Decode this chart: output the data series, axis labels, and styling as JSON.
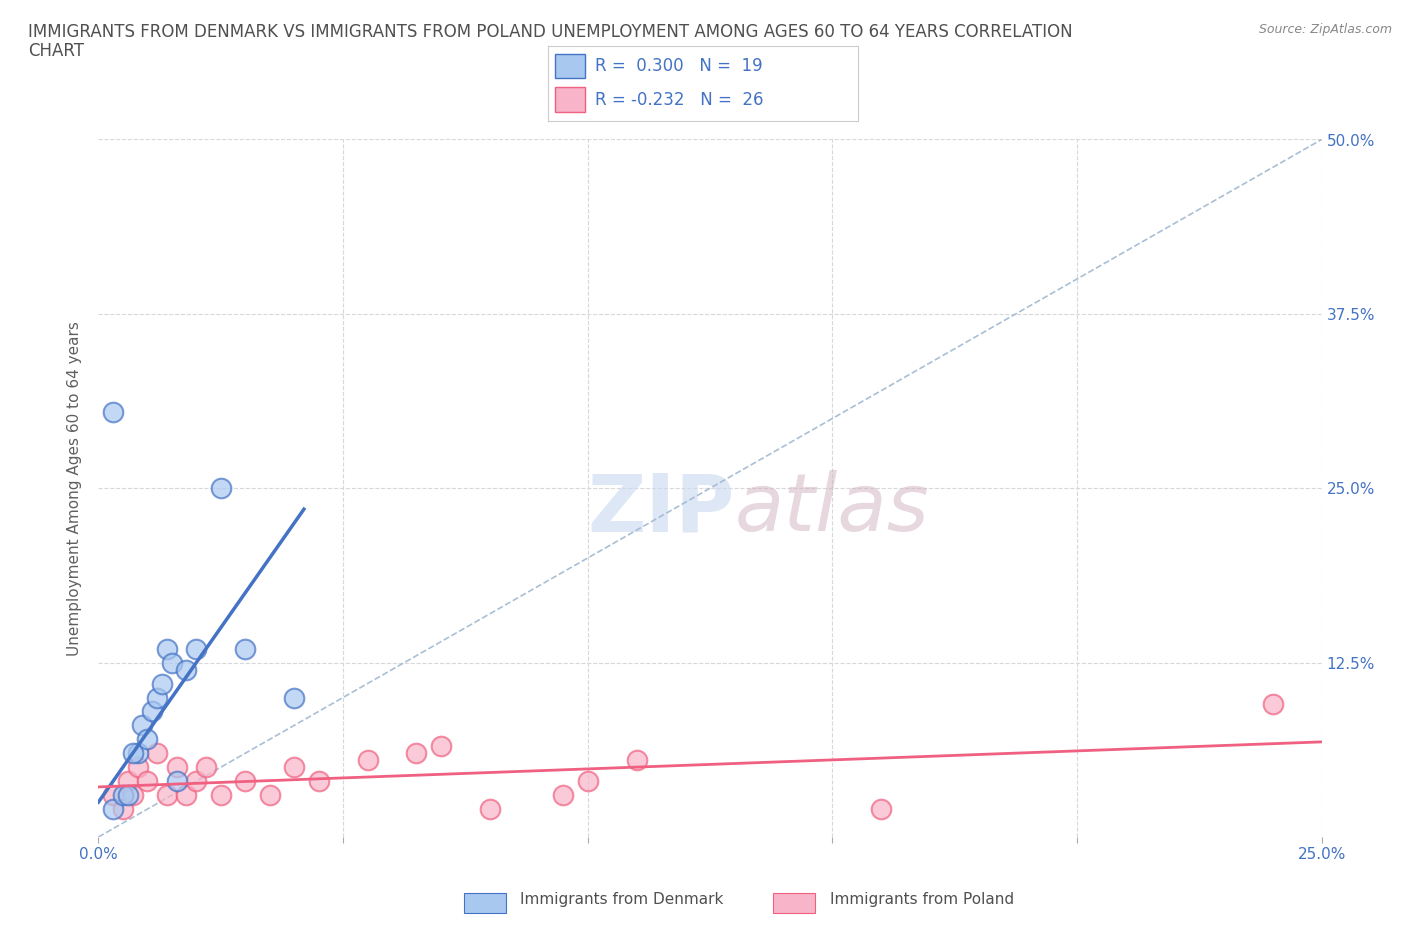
{
  "title_line1": "IMMIGRANTS FROM DENMARK VS IMMIGRANTS FROM POLAND UNEMPLOYMENT AMONG AGES 60 TO 64 YEARS CORRELATION",
  "title_line2": "CHART",
  "source": "Source: ZipAtlas.com",
  "ylabel": "Unemployment Among Ages 60 to 64 years",
  "xlim": [
    0.0,
    0.25
  ],
  "ylim": [
    -0.01,
    0.5
  ],
  "ylim_plot": [
    0.0,
    0.5
  ],
  "xtick_positions": [
    0.0,
    0.05,
    0.1,
    0.15,
    0.2,
    0.25
  ],
  "ytick_positions": [
    0.0,
    0.125,
    0.25,
    0.375,
    0.5
  ],
  "xticklabels": [
    "0.0%",
    "",
    "",
    "",
    "",
    "25.0%"
  ],
  "yticklabels_right": [
    "",
    "12.5%",
    "25.0%",
    "37.5%",
    "50.0%"
  ],
  "denmark_scatter_color": "#a8c8f0",
  "poland_scatter_color": "#f8b4c8",
  "denmark_line_color": "#4472c4",
  "poland_line_color": "#f06080",
  "diagonal_color": "#a0b8d0",
  "R_denmark": 0.3,
  "N_denmark": 19,
  "R_poland": -0.232,
  "N_poland": 26,
  "legend_label_denmark": "Immigrants from Denmark",
  "legend_label_poland": "Immigrants from Poland",
  "watermark_zip": "ZIP",
  "watermark_atlas": "atlas",
  "denmark_x": [
    0.003,
    0.005,
    0.006,
    0.008,
    0.009,
    0.01,
    0.011,
    0.012,
    0.013,
    0.014,
    0.015,
    0.016,
    0.018,
    0.02,
    0.025,
    0.03,
    0.04,
    0.003,
    0.007
  ],
  "denmark_y": [
    0.02,
    0.03,
    0.03,
    0.06,
    0.08,
    0.07,
    0.09,
    0.1,
    0.11,
    0.135,
    0.125,
    0.04,
    0.12,
    0.135,
    0.25,
    0.135,
    0.1,
    0.305,
    0.06
  ],
  "poland_x": [
    0.003,
    0.005,
    0.006,
    0.007,
    0.008,
    0.01,
    0.012,
    0.014,
    0.016,
    0.018,
    0.02,
    0.022,
    0.025,
    0.03,
    0.035,
    0.04,
    0.045,
    0.055,
    0.065,
    0.07,
    0.08,
    0.095,
    0.1,
    0.11,
    0.16,
    0.24
  ],
  "poland_y": [
    0.03,
    0.02,
    0.04,
    0.03,
    0.05,
    0.04,
    0.06,
    0.03,
    0.05,
    0.03,
    0.04,
    0.05,
    0.03,
    0.04,
    0.03,
    0.05,
    0.04,
    0.055,
    0.06,
    0.065,
    0.02,
    0.03,
    0.04,
    0.055,
    0.02,
    0.095
  ],
  "background_color": "#ffffff",
  "grid_color": "#d8d8d8",
  "title_color": "#505050",
  "tick_label_color": "#4472c4",
  "axis_label_color": "#606060",
  "legend_text_color": "#4472c4"
}
